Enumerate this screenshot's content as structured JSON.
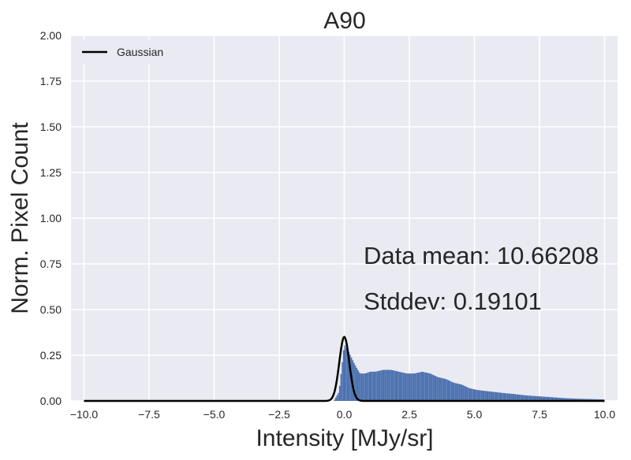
{
  "chart_data": {
    "type": "bar",
    "title": "A90",
    "xlabel": "Intensity [MJy/sr]",
    "ylabel": "Norm. Pixel Count",
    "xlim": [
      -10.5,
      10.5
    ],
    "ylim": [
      0,
      2.0
    ],
    "grid": true,
    "background": "#eaeaf2",
    "x_ticks": [
      "−10.0",
      "−7.5",
      "−5.0",
      "−2.5",
      "0.0",
      "2.5",
      "5.0",
      "7.5",
      "10.0"
    ],
    "x_tick_values": [
      -10,
      -7.5,
      -5,
      -2.5,
      0,
      2.5,
      5,
      7.5,
      10
    ],
    "y_ticks": [
      "0.00",
      "0.25",
      "0.50",
      "0.75",
      "1.00",
      "1.25",
      "1.50",
      "1.75",
      "2.00"
    ],
    "y_tick_values": [
      0,
      0.25,
      0.5,
      0.75,
      1.0,
      1.25,
      1.5,
      1.75,
      2.0
    ],
    "legend": {
      "position": "top-left",
      "entries": [
        {
          "label": "Gaussian",
          "color": "#000000"
        }
      ]
    },
    "annotations": [
      "Data mean: 10.66208",
      "Stddev: 0.19101"
    ],
    "series": [
      {
        "kind": "histogram",
        "color": "#4c72b0",
        "x": [
          -0.4,
          -0.2,
          0.0,
          0.2,
          0.4,
          0.6,
          0.8,
          1.0,
          1.2,
          1.5,
          1.8,
          2.1,
          2.4,
          2.7,
          3.0,
          3.3,
          3.6,
          3.9,
          4.2,
          4.5,
          4.8,
          5.1,
          5.4,
          5.7,
          6.0,
          6.5,
          7.0,
          7.5,
          8.0,
          8.5,
          9.0,
          9.5,
          10.0
        ],
        "y": [
          0.0,
          0.05,
          0.31,
          0.26,
          0.2,
          0.15,
          0.15,
          0.16,
          0.16,
          0.17,
          0.17,
          0.16,
          0.15,
          0.15,
          0.16,
          0.15,
          0.13,
          0.12,
          0.1,
          0.09,
          0.07,
          0.06,
          0.055,
          0.05,
          0.045,
          0.038,
          0.03,
          0.025,
          0.02,
          0.015,
          0.012,
          0.01,
          0.008
        ]
      },
      {
        "name": "Gaussian",
        "kind": "line",
        "color": "#000000",
        "mean": 0.0,
        "stddev": 0.19101,
        "peak": 0.35,
        "x_range": [
          -10,
          10
        ]
      }
    ]
  }
}
